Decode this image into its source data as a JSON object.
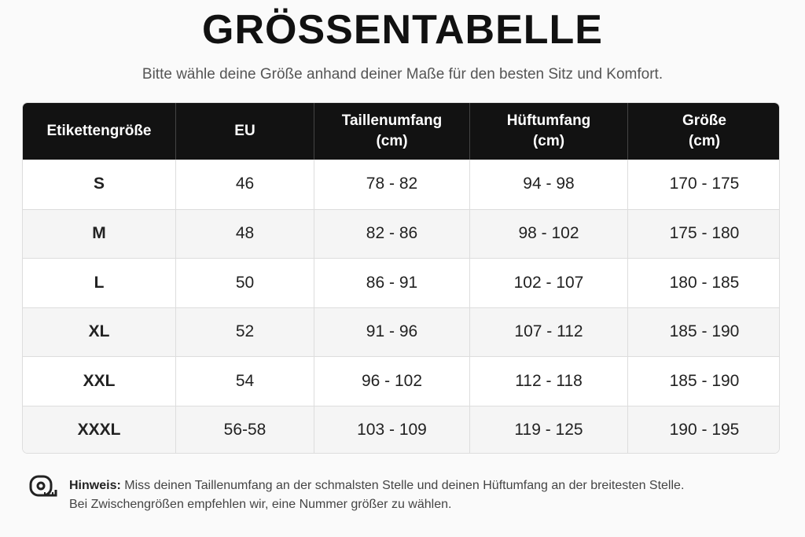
{
  "header": {
    "title": "GRÖSSENTABELLE",
    "subtitle": "Bitte wähle deine Größe anhand deiner Maße für den besten Sitz und Komfort."
  },
  "table": {
    "headers": [
      [
        "Etikettengröße"
      ],
      [
        "EU"
      ],
      [
        "Taillenumfang",
        "(cm)"
      ],
      [
        "Hüftumfang",
        "(cm)"
      ],
      [
        "Größe",
        "(cm)"
      ]
    ],
    "rows": [
      [
        "S",
        "46",
        "78 - 82",
        "94 - 98",
        "170 - 175"
      ],
      [
        "M",
        "48",
        "82 - 86",
        "98 - 102",
        "175 - 180"
      ],
      [
        "L",
        "50",
        "86 - 91",
        "102 - 107",
        "180 - 185"
      ],
      [
        "XL",
        "52",
        "91 - 96",
        "107 - 112",
        "185 - 190"
      ],
      [
        "XXL",
        "54",
        "96 - 102",
        "112 - 118",
        "185 - 190"
      ],
      [
        "XXXL",
        "56-58",
        "103 - 109",
        "119 - 125",
        "190 - 195"
      ]
    ]
  },
  "note": {
    "label": "Hinweis:",
    "lines": [
      "Miss deinen Taillenumfang an der schmalsten Stelle und deinen Hüftumfang an der breitesten Stelle.",
      "Bei Zwischengrößen empfehlen wir, eine Nummer größer zu wählen."
    ]
  }
}
